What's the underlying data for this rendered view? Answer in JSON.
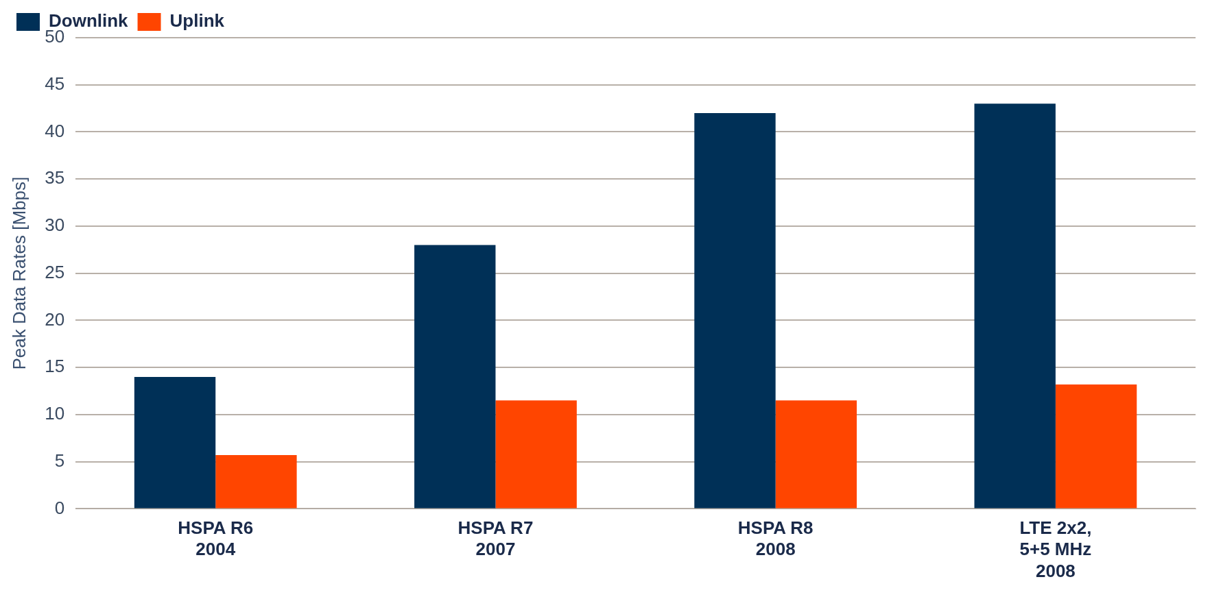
{
  "chart_data": {
    "type": "bar",
    "ylabel": "Peak Data Rates [Mbps]",
    "categories": [
      "HSPA R6\n2004",
      "HSPA R7\n2007",
      "HSPA R8\n2008",
      "LTE 2x2,\n5+5 MHz\n2008"
    ],
    "series": [
      {
        "name": "Downlink",
        "color": "#003057",
        "values": [
          14,
          28,
          42,
          43
        ]
      },
      {
        "name": "Uplink",
        "color": "#ff4500",
        "values": [
          5.7,
          11.5,
          11.5,
          13.2
        ]
      }
    ],
    "ylim": [
      0,
      50
    ],
    "yticks": [
      0,
      5,
      10,
      15,
      20,
      25,
      30,
      35,
      40,
      45,
      50
    ],
    "grid": "y",
    "legend": "top left"
  }
}
